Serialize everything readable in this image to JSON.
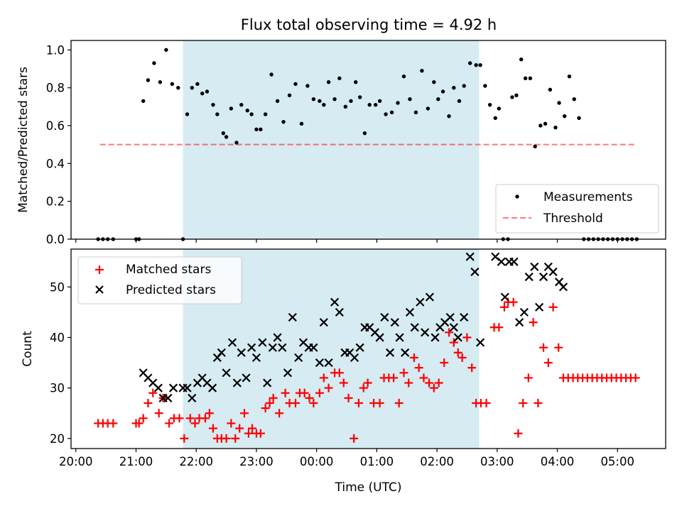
{
  "title": "Flux total observing time = 4.92 h",
  "colors": {
    "shade": "#add8e6",
    "measurement": "#000000",
    "threshold": "#ff0000",
    "matched": "#ff0000",
    "predicted": "#000000"
  },
  "chart_data": [
    {
      "type": "scatter",
      "panel": "top",
      "ylabel": "Matched/Predicted stars",
      "xlabel": "",
      "xlim_hours": [
        19.92,
        29.8
      ],
      "ylim": [
        0,
        1.05
      ],
      "yticks": [
        "0.0",
        "0.2",
        "0.4",
        "0.6",
        "0.8",
        "1.0"
      ],
      "yticks_values": [
        0,
        0.2,
        0.4,
        0.6,
        0.8,
        1.0
      ],
      "shaded_span_hours": [
        21.78,
        26.7
      ],
      "legend": {
        "placement": "lower right",
        "entries": [
          "Measurements",
          "Threshold"
        ]
      },
      "threshold": {
        "name": "Threshold",
        "y": 0.5,
        "x_hours": [
          20.4,
          29.3
        ]
      },
      "series": [
        {
          "name": "Measurements",
          "marker": "dot",
          "x_hours": [
            20.37,
            20.45,
            20.53,
            20.62,
            21.0,
            21.05,
            21.12,
            21.2,
            21.3,
            21.4,
            21.5,
            21.6,
            21.7,
            21.78,
            21.85,
            21.93,
            22.02,
            22.1,
            22.18,
            22.28,
            22.35,
            22.45,
            22.5,
            22.58,
            22.67,
            22.75,
            22.85,
            22.92,
            23.0,
            23.07,
            23.15,
            23.25,
            23.35,
            23.45,
            23.55,
            23.65,
            23.75,
            23.85,
            23.95,
            24.05,
            24.12,
            24.2,
            24.3,
            24.38,
            24.48,
            24.57,
            24.65,
            24.72,
            24.8,
            24.88,
            24.98,
            25.05,
            25.15,
            25.25,
            25.35,
            25.45,
            25.55,
            25.65,
            25.75,
            25.85,
            25.95,
            26.02,
            26.1,
            26.2,
            26.28,
            26.37,
            26.45,
            26.55,
            26.65,
            26.72,
            26.8,
            26.88,
            26.97,
            27.03,
            27.1,
            27.18,
            27.25,
            27.32,
            27.4,
            27.47,
            27.55,
            27.63,
            27.72,
            27.8,
            27.88,
            27.97,
            28.03,
            28.12,
            28.2,
            28.28,
            28.36,
            28.44,
            28.52,
            28.6,
            28.68,
            28.76,
            28.84,
            28.92,
            29.0,
            29.08,
            29.16,
            29.24,
            29.32
          ],
          "y": [
            0,
            0,
            0,
            0,
            0,
            0,
            0.73,
            0.84,
            0.93,
            0.83,
            1.0,
            0.82,
            0.8,
            0,
            0.66,
            0.8,
            0.82,
            0.77,
            0.78,
            0.71,
            0.66,
            0.56,
            0.54,
            0.69,
            0.51,
            0.71,
            0.68,
            0.66,
            0.58,
            0.58,
            0.66,
            0.87,
            0.73,
            0.62,
            0.76,
            0.82,
            0.61,
            0.81,
            0.74,
            0.73,
            0.71,
            0.83,
            0.74,
            0.85,
            0.7,
            0.73,
            0.83,
            0.75,
            0.56,
            0.71,
            0.71,
            0.73,
            0.66,
            0.67,
            0.72,
            0.86,
            0.74,
            0.67,
            0.89,
            0.69,
            0.83,
            0.74,
            0.78,
            0.65,
            0.8,
            0.73,
            0.81,
            0.93,
            0.92,
            0.92,
            0.81,
            0.71,
            0.64,
            0.69,
            0,
            0,
            0.75,
            0.76,
            0.95,
            0.85,
            0.85,
            0.49,
            0.6,
            0.61,
            0.79,
            0.59,
            0.72,
            0.65,
            0.86,
            0.74,
            0.64,
            0,
            0,
            0,
            0,
            0,
            0,
            0,
            0,
            0,
            0,
            0,
            0
          ]
        }
      ]
    },
    {
      "type": "scatter",
      "panel": "bottom",
      "xlabel": "Time (UTC)",
      "ylabel": "Count",
      "xlim_hours": [
        19.92,
        29.8
      ],
      "ylim": [
        18,
        57.5
      ],
      "yticks": [
        "20",
        "30",
        "40",
        "50"
      ],
      "yticks_values": [
        20,
        30,
        40,
        50
      ],
      "xticks": [
        "20:00",
        "21:00",
        "22:00",
        "23:00",
        "00:00",
        "01:00",
        "02:00",
        "03:00",
        "04:00",
        "05:00"
      ],
      "xticks_hours": [
        20,
        21,
        22,
        23,
        24,
        25,
        26,
        27,
        28,
        29
      ],
      "shaded_span_hours": [
        21.78,
        26.7
      ],
      "legend": {
        "placement": "upper left",
        "entries": [
          "Matched stars",
          "Predicted stars"
        ]
      },
      "series": [
        {
          "name": "Matched stars",
          "marker": "plus",
          "points": [
            [
              20.37,
              23
            ],
            [
              20.45,
              23
            ],
            [
              20.53,
              23
            ],
            [
              20.62,
              23
            ],
            [
              21.0,
              23
            ],
            [
              21.05,
              23
            ],
            [
              21.12,
              24
            ],
            [
              21.2,
              27
            ],
            [
              21.28,
              29
            ],
            [
              21.38,
              25
            ],
            [
              21.45,
              28
            ],
            [
              21.55,
              23
            ],
            [
              21.63,
              24
            ],
            [
              21.72,
              24
            ],
            [
              21.8,
              20
            ],
            [
              21.9,
              24
            ],
            [
              21.98,
              23
            ],
            [
              22.05,
              24
            ],
            [
              22.15,
              24
            ],
            [
              22.22,
              25
            ],
            [
              22.28,
              22
            ],
            [
              22.35,
              20
            ],
            [
              22.42,
              20
            ],
            [
              22.5,
              20
            ],
            [
              22.58,
              23
            ],
            [
              22.65,
              20
            ],
            [
              22.72,
              22
            ],
            [
              22.8,
              25
            ],
            [
              22.87,
              21
            ],
            [
              22.93,
              22
            ],
            [
              23.0,
              21
            ],
            [
              23.07,
              21
            ],
            [
              23.15,
              26
            ],
            [
              23.22,
              27
            ],
            [
              23.28,
              28
            ],
            [
              23.38,
              25
            ],
            [
              23.48,
              29
            ],
            [
              23.55,
              27
            ],
            [
              23.65,
              27
            ],
            [
              23.72,
              29
            ],
            [
              23.8,
              29
            ],
            [
              23.88,
              28
            ],
            [
              23.95,
              27
            ],
            [
              24.05,
              29
            ],
            [
              24.12,
              32
            ],
            [
              24.2,
              30
            ],
            [
              24.3,
              33
            ],
            [
              24.38,
              33
            ],
            [
              24.45,
              31
            ],
            [
              24.53,
              28
            ],
            [
              24.62,
              20
            ],
            [
              24.7,
              27
            ],
            [
              24.78,
              30
            ],
            [
              24.85,
              31
            ],
            [
              24.95,
              27
            ],
            [
              25.05,
              27
            ],
            [
              25.12,
              32
            ],
            [
              25.2,
              32
            ],
            [
              25.28,
              32
            ],
            [
              25.37,
              27
            ],
            [
              25.45,
              33
            ],
            [
              25.53,
              31
            ],
            [
              25.62,
              36
            ],
            [
              25.7,
              34
            ],
            [
              25.78,
              32
            ],
            [
              25.87,
              31
            ],
            [
              25.95,
              30
            ],
            [
              26.03,
              31
            ],
            [
              26.12,
              35
            ],
            [
              26.2,
              41
            ],
            [
              26.28,
              39
            ],
            [
              26.35,
              37
            ],
            [
              26.42,
              36
            ],
            [
              26.5,
              40
            ],
            [
              26.58,
              34
            ],
            [
              26.65,
              27
            ],
            [
              26.73,
              27
            ],
            [
              26.82,
              27
            ],
            [
              26.95,
              42
            ],
            [
              27.03,
              42
            ],
            [
              27.12,
              46
            ],
            [
              27.18,
              47
            ],
            [
              27.27,
              47
            ],
            [
              27.35,
              21
            ],
            [
              27.43,
              27
            ],
            [
              27.52,
              32
            ],
            [
              27.6,
              43
            ],
            [
              27.68,
              27
            ],
            [
              27.77,
              38
            ],
            [
              27.85,
              35
            ],
            [
              27.93,
              46
            ],
            [
              28.02,
              38
            ],
            [
              28.1,
              32
            ],
            [
              28.18,
              32
            ],
            [
              28.26,
              32
            ],
            [
              28.34,
              32
            ],
            [
              28.42,
              32
            ],
            [
              28.5,
              32
            ],
            [
              28.58,
              32
            ],
            [
              28.66,
              32
            ],
            [
              28.74,
              32
            ],
            [
              28.82,
              32
            ],
            [
              28.9,
              32
            ],
            [
              28.98,
              32
            ],
            [
              29.06,
              32
            ],
            [
              29.14,
              32
            ],
            [
              29.22,
              32
            ],
            [
              29.3,
              32
            ]
          ]
        },
        {
          "name": "Predicted stars",
          "marker": "x",
          "points": [
            [
              21.12,
              33
            ],
            [
              21.2,
              32
            ],
            [
              21.28,
              31
            ],
            [
              21.37,
              30
            ],
            [
              21.45,
              28
            ],
            [
              21.53,
              28
            ],
            [
              21.62,
              30
            ],
            [
              21.78,
              30
            ],
            [
              21.85,
              30
            ],
            [
              21.93,
              28
            ],
            [
              22.02,
              31
            ],
            [
              22.1,
              32
            ],
            [
              22.18,
              31
            ],
            [
              22.27,
              30
            ],
            [
              22.35,
              36
            ],
            [
              22.42,
              37
            ],
            [
              22.5,
              33
            ],
            [
              22.6,
              39
            ],
            [
              22.68,
              31
            ],
            [
              22.75,
              37
            ],
            [
              22.83,
              32
            ],
            [
              22.92,
              38
            ],
            [
              23.0,
              36
            ],
            [
              23.1,
              39
            ],
            [
              23.18,
              31
            ],
            [
              23.27,
              38
            ],
            [
              23.35,
              40
            ],
            [
              23.43,
              38
            ],
            [
              23.52,
              33
            ],
            [
              23.6,
              44
            ],
            [
              23.7,
              36
            ],
            [
              23.78,
              39
            ],
            [
              23.87,
              38
            ],
            [
              23.95,
              38
            ],
            [
              24.05,
              35
            ],
            [
              24.12,
              43
            ],
            [
              24.2,
              35
            ],
            [
              24.3,
              47
            ],
            [
              24.38,
              45
            ],
            [
              24.47,
              37
            ],
            [
              24.55,
              37
            ],
            [
              24.63,
              36
            ],
            [
              24.72,
              38
            ],
            [
              24.8,
              42
            ],
            [
              24.88,
              42
            ],
            [
              24.97,
              41
            ],
            [
              25.05,
              40
            ],
            [
              25.13,
              44
            ],
            [
              25.22,
              37
            ],
            [
              25.3,
              43
            ],
            [
              25.38,
              40
            ],
            [
              25.47,
              37
            ],
            [
              25.55,
              45
            ],
            [
              25.63,
              42
            ],
            [
              25.72,
              47
            ],
            [
              25.8,
              41
            ],
            [
              25.88,
              48
            ],
            [
              25.97,
              40
            ],
            [
              26.05,
              42
            ],
            [
              26.13,
              43
            ],
            [
              26.22,
              44
            ],
            [
              26.28,
              42
            ],
            [
              26.35,
              40
            ],
            [
              26.45,
              44
            ],
            [
              26.55,
              56
            ],
            [
              26.63,
              53
            ],
            [
              26.72,
              39
            ],
            [
              26.97,
              56
            ],
            [
              27.07,
              55
            ],
            [
              27.13,
              48
            ],
            [
              27.2,
              55
            ],
            [
              27.28,
              55
            ],
            [
              27.37,
              43
            ],
            [
              27.45,
              45
            ],
            [
              27.53,
              52
            ],
            [
              27.62,
              54
            ],
            [
              27.7,
              46
            ],
            [
              27.77,
              52
            ],
            [
              27.85,
              54
            ],
            [
              27.93,
              53
            ],
            [
              28.03,
              51
            ],
            [
              28.1,
              50
            ]
          ]
        }
      ]
    }
  ]
}
